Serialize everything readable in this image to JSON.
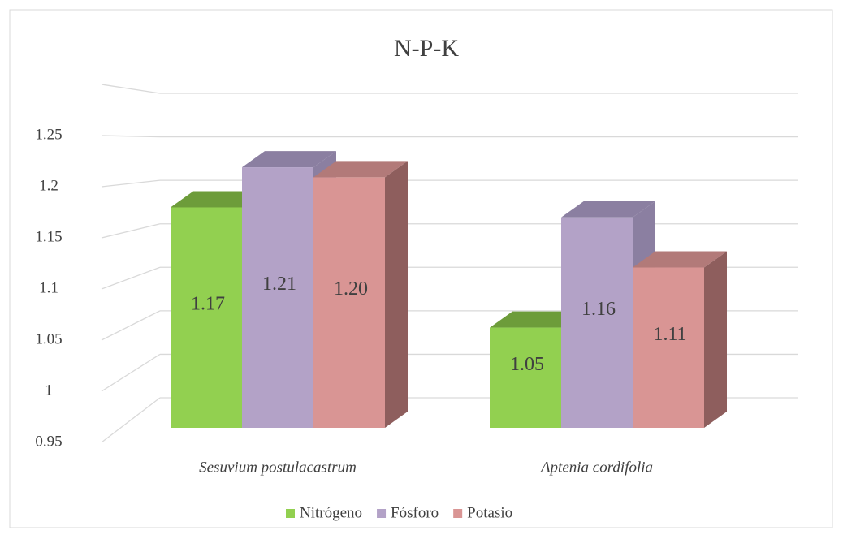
{
  "chart_data": {
    "type": "bar3d",
    "title": "N-P-K",
    "categories": [
      "Sesuvium postulacastrum",
      "Aptenia cordifolia"
    ],
    "series": [
      {
        "name": "Nitrógeno",
        "color": "#92d050",
        "top_color": "#6d9c3a",
        "values": [
          1.17,
          1.05
        ]
      },
      {
        "name": "Fósforo",
        "color": "#b3a2c7",
        "top_color": "#8b7fa1",
        "values": [
          1.21,
          1.16
        ]
      },
      {
        "name": "Potasio",
        "color": "#d99594",
        "side_color": "#8e5e5d",
        "top_color": "#b27a79",
        "values": [
          1.2,
          1.11
        ],
        "value_labels": [
          "1.20",
          "1.11"
        ]
      }
    ],
    "ylim": [
      0.95,
      1.3
    ],
    "yticks": [
      0.95,
      1,
      1.05,
      1.1,
      1.15,
      1.2,
      1.25
    ],
    "grid": true,
    "legend": "bottom"
  }
}
